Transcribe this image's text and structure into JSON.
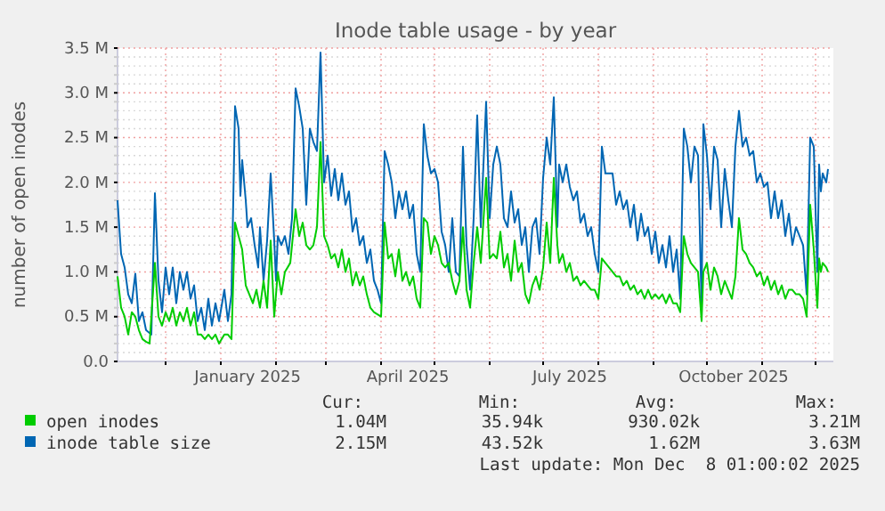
{
  "chart_data": {
    "type": "line",
    "title": "Inode table usage - by year",
    "ylabel": "number of open inodes",
    "xlim": [
      "2024-11-04",
      "2025-12-11"
    ],
    "xticks": [
      {
        "value": "2024-12-01",
        "label": null
      },
      {
        "value": "2025-01-01",
        "label": null
      },
      {
        "value": "2025-01-16",
        "label": "January 2025"
      },
      {
        "value": "2025-02-01",
        "label": null
      },
      {
        "value": "2025-03-01",
        "label": null
      },
      {
        "value": "2025-04-01",
        "label": null
      },
      {
        "value": "2025-04-16",
        "label": "April 2025"
      },
      {
        "value": "2025-05-01",
        "label": null
      },
      {
        "value": "2025-06-01",
        "label": null
      },
      {
        "value": "2025-07-01",
        "label": null
      },
      {
        "value": "2025-07-16",
        "label": "July 2025"
      },
      {
        "value": "2025-08-01",
        "label": null
      },
      {
        "value": "2025-09-01",
        "label": null
      },
      {
        "value": "2025-10-01",
        "label": null
      },
      {
        "value": "2025-10-16",
        "label": "October 2025"
      },
      {
        "value": "2025-11-01",
        "label": null
      },
      {
        "value": "2025-12-01",
        "label": null
      }
    ],
    "ylim": [
      0,
      3.5
    ],
    "yticks": [
      {
        "value": 0,
        "label": "0.0"
      },
      {
        "value": 0.1,
        "label": null
      },
      {
        "value": 0.2,
        "label": null
      },
      {
        "value": 0.3,
        "label": null
      },
      {
        "value": 0.4,
        "label": null
      },
      {
        "value": 0.5,
        "label": "0.5 M"
      },
      {
        "value": 0.6,
        "label": null
      },
      {
        "value": 0.7,
        "label": null
      },
      {
        "value": 0.8,
        "label": null
      },
      {
        "value": 0.9,
        "label": null
      },
      {
        "value": 1,
        "label": "1.0 M"
      },
      {
        "value": 1.1,
        "label": null
      },
      {
        "value": 1.2,
        "label": null
      },
      {
        "value": 1.3,
        "label": null
      },
      {
        "value": 1.4,
        "label": null
      },
      {
        "value": 1.5,
        "label": "1.5 M"
      },
      {
        "value": 1.6,
        "label": null
      },
      {
        "value": 1.7,
        "label": null
      },
      {
        "value": 1.8,
        "label": null
      },
      {
        "value": 1.9,
        "label": null
      },
      {
        "value": 2,
        "label": "2.0 M"
      },
      {
        "value": 2.1,
        "label": null
      },
      {
        "value": 2.2,
        "label": null
      },
      {
        "value": 2.3,
        "label": null
      },
      {
        "value": 2.4,
        "label": null
      },
      {
        "value": 2.5,
        "label": "2.5 M"
      },
      {
        "value": 2.6,
        "label": null
      },
      {
        "value": 2.7,
        "label": null
      },
      {
        "value": 2.8,
        "label": null
      },
      {
        "value": 2.9,
        "label": null
      },
      {
        "value": 3,
        "label": "3.0 M"
      },
      {
        "value": 3.1,
        "label": null
      },
      {
        "value": 3.2,
        "label": null
      },
      {
        "value": 3.3,
        "label": null
      },
      {
        "value": 3.4,
        "label": null
      },
      {
        "value": 3.5,
        "label": "3.5 M"
      }
    ],
    "grid": true,
    "legend": "bottom",
    "marker": "none",
    "line_style": "solid",
    "series": [
      {
        "name": "inode table size",
        "color": "#0066b3",
        "x": [
          "2024-11-04",
          "2024-11-06",
          "2024-11-08",
          "2024-11-10",
          "2024-11-12",
          "2024-11-14",
          "2024-11-16",
          "2024-11-18",
          "2024-11-20",
          "2024-11-23",
          "2024-11-25",
          "2024-11-27",
          "2024-11-29",
          "2024-12-01",
          "2024-12-03",
          "2024-12-05",
          "2024-12-07",
          "2024-12-09",
          "2024-12-11",
          "2024-12-13",
          "2024-12-15",
          "2024-12-17",
          "2024-12-19",
          "2024-12-21",
          "2024-12-23",
          "2024-12-25",
          "2024-12-27",
          "2024-12-29",
          "2024-12-31",
          "2025-01-03",
          "2025-01-05",
          "2025-01-07",
          "2025-01-09",
          "2025-01-11",
          "2025-01-12",
          "2025-01-13",
          "2025-01-15",
          "2025-01-16",
          "2025-01-18",
          "2025-01-20",
          "2025-01-22",
          "2025-01-23",
          "2025-01-25",
          "2025-01-27",
          "2025-01-29",
          "2025-01-31",
          "2025-02-01",
          "2025-02-02",
          "2025-02-04",
          "2025-02-06",
          "2025-02-08",
          "2025-02-10",
          "2025-02-12",
          "2025-02-14",
          "2025-02-16",
          "2025-02-18",
          "2025-02-20",
          "2025-02-22",
          "2025-02-24",
          "2025-02-26",
          "2025-02-28",
          "2025-03-02",
          "2025-03-04",
          "2025-03-06",
          "2025-03-08",
          "2025-03-10",
          "2025-03-12",
          "2025-03-14",
          "2025-03-16",
          "2025-03-18",
          "2025-03-20",
          "2025-03-22",
          "2025-03-24",
          "2025-03-26",
          "2025-03-28",
          "2025-03-30",
          "2025-04-01",
          "2025-04-03",
          "2025-04-05",
          "2025-04-07",
          "2025-04-09",
          "2025-04-11",
          "2025-04-13",
          "2025-04-15",
          "2025-04-17",
          "2025-04-19",
          "2025-04-21",
          "2025-04-23",
          "2025-04-25",
          "2025-04-27",
          "2025-04-29",
          "2025-05-01",
          "2025-05-03",
          "2025-05-05",
          "2025-05-07",
          "2025-05-09",
          "2025-05-11",
          "2025-05-13",
          "2025-05-15",
          "2025-05-17",
          "2025-05-19",
          "2025-05-21",
          "2025-05-23",
          "2025-05-25",
          "2025-05-27",
          "2025-05-30",
          "2025-06-01",
          "2025-06-03",
          "2025-06-05",
          "2025-06-07",
          "2025-06-09",
          "2025-06-11",
          "2025-06-13",
          "2025-06-15",
          "2025-06-17",
          "2025-06-19",
          "2025-06-21",
          "2025-06-23",
          "2025-06-25",
          "2025-06-27",
          "2025-06-29",
          "2025-07-01",
          "2025-07-03",
          "2025-07-05",
          "2025-07-07",
          "2025-07-09",
          "2025-07-10",
          "2025-07-12",
          "2025-07-14",
          "2025-07-16",
          "2025-07-18",
          "2025-07-20",
          "2025-07-22",
          "2025-07-24",
          "2025-07-26",
          "2025-07-28",
          "2025-07-30",
          "2025-08-01",
          "2025-08-03",
          "2025-08-05",
          "2025-08-07",
          "2025-08-09",
          "2025-08-11",
          "2025-08-13",
          "2025-08-15",
          "2025-08-17",
          "2025-08-19",
          "2025-08-21",
          "2025-08-23",
          "2025-08-25",
          "2025-08-27",
          "2025-08-29",
          "2025-08-31",
          "2025-09-02",
          "2025-09-04",
          "2025-09-06",
          "2025-09-08",
          "2025-09-10",
          "2025-09-12",
          "2025-09-14",
          "2025-09-16",
          "2025-09-18",
          "2025-09-20",
          "2025-09-22",
          "2025-09-24",
          "2025-09-26",
          "2025-09-28",
          "2025-09-29",
          "2025-10-01",
          "2025-10-03",
          "2025-10-05",
          "2025-10-07",
          "2025-10-09",
          "2025-10-11",
          "2025-10-13",
          "2025-10-15",
          "2025-10-17",
          "2025-10-19",
          "2025-10-21",
          "2025-10-23",
          "2025-10-25",
          "2025-10-27",
          "2025-10-29",
          "2025-10-31",
          "2025-11-02",
          "2025-11-04",
          "2025-11-06",
          "2025-11-08",
          "2025-11-10",
          "2025-11-12",
          "2025-11-14",
          "2025-11-16",
          "2025-11-18",
          "2025-11-20",
          "2025-11-22",
          "2025-11-24",
          "2025-11-26",
          "2025-11-28",
          "2025-11-30",
          "2025-12-02",
          "2025-12-03",
          "2025-12-04",
          "2025-12-05",
          "2025-12-07",
          "2025-12-08"
        ],
        "values": [
          1.8,
          1.2,
          1.05,
          0.75,
          0.65,
          0.98,
          0.45,
          0.55,
          0.35,
          0.3,
          1.88,
          0.9,
          0.55,
          1.05,
          0.75,
          1.05,
          0.65,
          1.0,
          0.8,
          1.0,
          0.7,
          0.85,
          0.45,
          0.6,
          0.35,
          0.7,
          0.4,
          0.65,
          0.45,
          0.8,
          0.45,
          0.75,
          2.85,
          2.6,
          1.85,
          2.25,
          1.8,
          1.5,
          1.6,
          1.3,
          1.05,
          1.5,
          0.9,
          1.35,
          2.1,
          1.35,
          0.9,
          1.4,
          1.3,
          1.4,
          1.2,
          1.6,
          3.05,
          2.85,
          2.6,
          1.75,
          2.6,
          2.45,
          2.35,
          3.45,
          2.0,
          2.3,
          1.85,
          2.15,
          1.8,
          2.1,
          1.75,
          1.9,
          1.45,
          1.6,
          1.3,
          1.4,
          1.1,
          1.25,
          0.9,
          0.8,
          0.65,
          2.35,
          2.2,
          2.0,
          1.6,
          1.9,
          1.7,
          1.9,
          1.6,
          1.75,
          1.2,
          1.0,
          2.65,
          2.3,
          2.1,
          2.15,
          2.0,
          1.45,
          1.3,
          1.0,
          1.6,
          1.0,
          0.95,
          2.4,
          1.3,
          0.8,
          1.6,
          2.75,
          1.5,
          2.9,
          1.6,
          2.2,
          2.4,
          2.2,
          1.6,
          1.5,
          1.9,
          1.55,
          1.7,
          1.3,
          1.5,
          1.0,
          1.5,
          1.6,
          1.2,
          2.05,
          2.5,
          2.2,
          2.95,
          1.5,
          2.2,
          2.0,
          2.2,
          1.95,
          1.8,
          1.9,
          1.55,
          1.65,
          1.4,
          1.5,
          1.2,
          1.0,
          2.4,
          2.1,
          2.1,
          2.1,
          1.75,
          1.9,
          1.7,
          1.8,
          1.5,
          1.75,
          1.35,
          1.65,
          1.4,
          1.5,
          1.2,
          1.45,
          1.1,
          1.3,
          1.05,
          1.4,
          1.0,
          1.25,
          0.7,
          2.6,
          2.4,
          2.0,
          2.4,
          2.3,
          0.6,
          2.65,
          2.3,
          1.7,
          2.4,
          2.25,
          1.5,
          2.15,
          1.8,
          1.5,
          2.4,
          2.8,
          2.4,
          2.5,
          2.3,
          2.35,
          2.0,
          2.1,
          1.95,
          2.0,
          1.6,
          1.9,
          1.6,
          1.8,
          1.4,
          1.65,
          1.3,
          1.5,
          1.4,
          1.3,
          0.75,
          2.5,
          2.4,
          1.0,
          2.2,
          1.9,
          2.1,
          2.0,
          2.15
        ]
      },
      {
        "name": "open inodes",
        "color": "#00cc00",
        "x": [
          "2024-11-04",
          "2024-11-06",
          "2024-11-08",
          "2024-11-10",
          "2024-11-12",
          "2024-11-14",
          "2024-11-16",
          "2024-11-18",
          "2024-11-20",
          "2024-11-22",
          "2024-11-25",
          "2024-11-27",
          "2024-11-29",
          "2024-12-01",
          "2024-12-03",
          "2024-12-05",
          "2024-12-07",
          "2024-12-09",
          "2024-12-11",
          "2024-12-13",
          "2024-12-15",
          "2024-12-17",
          "2024-12-19",
          "2024-12-21",
          "2024-12-23",
          "2024-12-25",
          "2024-12-27",
          "2024-12-29",
          "2024-12-31",
          "2025-01-03",
          "2025-01-05",
          "2025-01-07",
          "2025-01-09",
          "2025-01-11",
          "2025-01-13",
          "2025-01-15",
          "2025-01-17",
          "2025-01-19",
          "2025-01-21",
          "2025-01-23",
          "2025-01-25",
          "2025-01-27",
          "2025-01-29",
          "2025-01-31",
          "2025-02-02",
          "2025-02-04",
          "2025-02-06",
          "2025-02-09",
          "2025-02-12",
          "2025-02-14",
          "2025-02-16",
          "2025-02-18",
          "2025-02-20",
          "2025-02-22",
          "2025-02-24",
          "2025-02-26",
          "2025-02-28",
          "2025-03-02",
          "2025-03-04",
          "2025-03-06",
          "2025-03-08",
          "2025-03-10",
          "2025-03-12",
          "2025-03-14",
          "2025-03-16",
          "2025-03-18",
          "2025-03-20",
          "2025-03-22",
          "2025-03-24",
          "2025-03-26",
          "2025-03-28",
          "2025-04-01",
          "2025-04-03",
          "2025-04-05",
          "2025-04-07",
          "2025-04-09",
          "2025-04-11",
          "2025-04-13",
          "2025-04-15",
          "2025-04-17",
          "2025-04-19",
          "2025-04-21",
          "2025-04-23",
          "2025-04-25",
          "2025-04-27",
          "2025-04-29",
          "2025-05-01",
          "2025-05-03",
          "2025-05-05",
          "2025-05-07",
          "2025-05-09",
          "2025-05-11",
          "2025-05-13",
          "2025-05-15",
          "2025-05-17",
          "2025-05-19",
          "2025-05-21",
          "2025-05-23",
          "2025-05-25",
          "2025-05-27",
          "2025-05-30",
          "2025-06-01",
          "2025-06-03",
          "2025-06-05",
          "2025-06-07",
          "2025-06-09",
          "2025-06-11",
          "2025-06-13",
          "2025-06-15",
          "2025-06-17",
          "2025-06-19",
          "2025-06-21",
          "2025-06-23",
          "2025-06-25",
          "2025-06-27",
          "2025-06-29",
          "2025-07-01",
          "2025-07-03",
          "2025-07-05",
          "2025-07-07",
          "2025-07-09",
          "2025-07-10",
          "2025-07-12",
          "2025-07-14",
          "2025-07-16",
          "2025-07-18",
          "2025-07-20",
          "2025-07-22",
          "2025-07-24",
          "2025-07-26",
          "2025-07-28",
          "2025-07-30",
          "2025-08-01",
          "2025-08-03",
          "2025-08-05",
          "2025-08-07",
          "2025-08-09",
          "2025-08-11",
          "2025-08-13",
          "2025-08-15",
          "2025-08-17",
          "2025-08-19",
          "2025-08-21",
          "2025-08-23",
          "2025-08-25",
          "2025-08-27",
          "2025-08-29",
          "2025-08-31",
          "2025-09-02",
          "2025-09-04",
          "2025-09-06",
          "2025-09-08",
          "2025-09-10",
          "2025-09-12",
          "2025-09-14",
          "2025-09-16",
          "2025-09-18",
          "2025-09-20",
          "2025-09-22",
          "2025-09-24",
          "2025-09-26",
          "2025-09-28",
          "2025-09-29",
          "2025-10-01",
          "2025-10-03",
          "2025-10-05",
          "2025-10-07",
          "2025-10-09",
          "2025-10-11",
          "2025-10-13",
          "2025-10-15",
          "2025-10-17",
          "2025-10-19",
          "2025-10-21",
          "2025-10-23",
          "2025-10-25",
          "2025-10-27",
          "2025-10-29",
          "2025-10-31",
          "2025-11-02",
          "2025-11-04",
          "2025-11-06",
          "2025-11-08",
          "2025-11-10",
          "2025-11-12",
          "2025-11-14",
          "2025-11-16",
          "2025-11-18",
          "2025-11-20",
          "2025-11-22",
          "2025-11-24",
          "2025-11-26",
          "2025-11-28",
          "2025-11-30",
          "2025-12-02",
          "2025-12-03",
          "2025-12-04",
          "2025-12-05",
          "2025-12-07",
          "2025-12-08"
        ],
        "values": [
          0.95,
          0.6,
          0.5,
          0.3,
          0.55,
          0.5,
          0.35,
          0.25,
          0.22,
          0.2,
          1.1,
          0.5,
          0.4,
          0.55,
          0.45,
          0.6,
          0.4,
          0.55,
          0.45,
          0.6,
          0.4,
          0.55,
          0.3,
          0.3,
          0.25,
          0.3,
          0.25,
          0.3,
          0.2,
          0.3,
          0.3,
          0.25,
          1.55,
          1.4,
          1.25,
          0.85,
          0.75,
          0.65,
          0.8,
          0.6,
          0.9,
          0.6,
          1.35,
          0.5,
          1.0,
          0.75,
          1.0,
          1.1,
          1.7,
          1.4,
          1.55,
          1.3,
          1.25,
          1.3,
          1.5,
          2.45,
          1.4,
          1.3,
          1.15,
          1.2,
          1.05,
          1.25,
          1.0,
          1.15,
          0.85,
          1.0,
          0.85,
          0.95,
          0.75,
          0.6,
          0.55,
          0.5,
          1.55,
          1.15,
          1.2,
          0.95,
          1.25,
          0.9,
          1.0,
          0.85,
          0.95,
          0.7,
          0.6,
          1.6,
          1.55,
          1.2,
          1.4,
          1.3,
          1.1,
          1.05,
          1.1,
          0.9,
          0.75,
          0.9,
          1.5,
          0.8,
          0.6,
          1.1,
          1.5,
          1.1,
          2.05,
          1.15,
          1.2,
          1.15,
          1.45,
          1.05,
          1.2,
          0.9,
          1.35,
          1.0,
          1.1,
          0.75,
          0.65,
          0.85,
          0.95,
          0.8,
          1.05,
          1.55,
          1.1,
          2.05,
          1.3,
          1.1,
          1.2,
          1.0,
          1.1,
          0.9,
          0.95,
          0.85,
          0.9,
          0.85,
          0.8,
          0.8,
          0.7,
          1.15,
          1.1,
          1.05,
          1.0,
          0.95,
          0.95,
          0.85,
          0.9,
          0.8,
          0.85,
          0.75,
          0.8,
          0.7,
          0.8,
          0.7,
          0.75,
          0.7,
          0.75,
          0.65,
          0.75,
          0.65,
          0.65,
          0.55,
          1.4,
          1.2,
          1.1,
          1.05,
          1.0,
          0.45,
          1.0,
          1.1,
          0.8,
          1.05,
          0.95,
          0.75,
          0.9,
          0.8,
          0.7,
          0.95,
          1.6,
          1.25,
          1.2,
          1.1,
          1.05,
          0.95,
          1.0,
          0.85,
          0.95,
          0.8,
          0.9,
          0.75,
          0.85,
          0.7,
          0.8,
          0.8,
          0.75,
          0.75,
          0.7,
          0.5,
          1.75,
          1.25,
          0.6,
          1.15,
          1.0,
          1.1,
          1.05,
          1.0
        ]
      }
    ],
    "annotations": [
      "Cur:",
      "Min:",
      "Avg:",
      "Max:",
      "1.04M",
      "35.94k",
      "930.02k",
      "3.21M",
      "2.15M",
      "43.52k",
      "1.62M",
      "3.63M",
      "Last update: Mon Dec  8 01:00:02 2025"
    ]
  }
}
